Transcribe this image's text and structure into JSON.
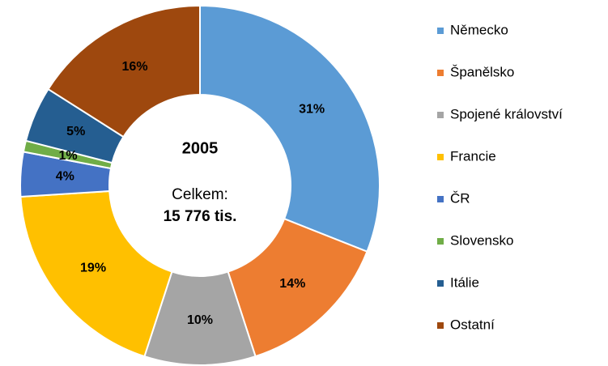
{
  "chart_data": {
    "type": "donut",
    "center_title": "2005",
    "center_label": "Celkem:",
    "center_value": "15 776 tis.",
    "categories": [
      "Německo",
      "Španělsko",
      "Spojené království",
      "Francie",
      "ČR",
      "Slovensko",
      "Itálie",
      "Ostatní"
    ],
    "values": [
      31,
      14,
      10,
      19,
      4,
      1,
      5,
      16
    ],
    "value_labels": [
      "31%",
      "14%",
      "10%",
      "19%",
      "4%",
      "1%",
      "5%",
      "16%"
    ],
    "colors": [
      "#5b9bd5",
      "#ed7d31",
      "#a5a5a5",
      "#ffc000",
      "#4472c4",
      "#70ad47",
      "#255e91",
      "#9e480e"
    ],
    "legend": "right"
  }
}
